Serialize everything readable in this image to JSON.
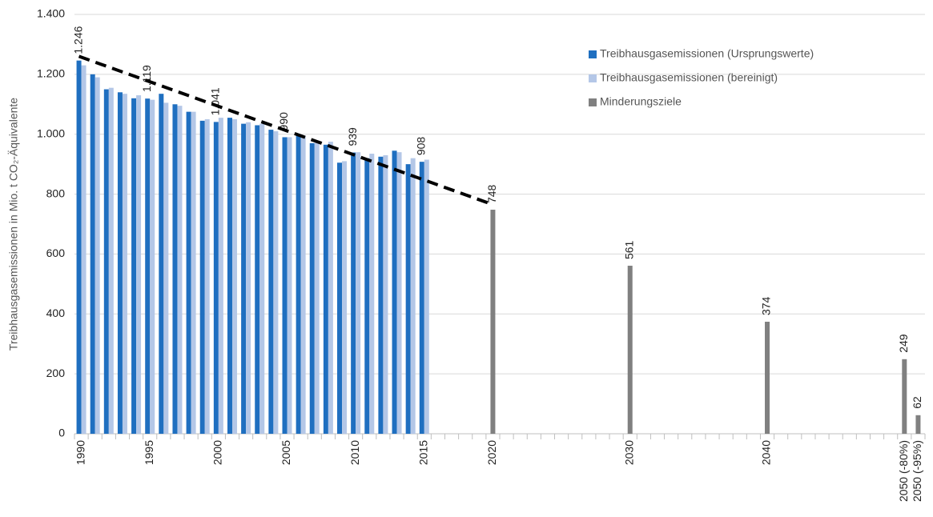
{
  "chart_data": {
    "type": "bar",
    "ylabel": "Treibhausgasemissionen in Mio. t CO₂-Äquivalente",
    "categories": [
      "1990",
      null,
      null,
      null,
      null,
      "1995",
      null,
      null,
      null,
      null,
      "2000",
      null,
      null,
      null,
      null,
      "2005",
      null,
      null,
      null,
      null,
      "2010",
      null,
      null,
      null,
      null,
      "2015",
      null,
      null,
      null,
      null,
      "2020",
      null,
      null,
      null,
      null,
      null,
      null,
      null,
      null,
      null,
      "2030",
      null,
      null,
      null,
      null,
      null,
      null,
      null,
      null,
      null,
      "2040",
      null,
      null,
      null,
      null,
      null,
      null,
      null,
      null,
      null,
      "2050 (-80%)",
      "2050 (-95%)"
    ],
    "series": [
      {
        "name": "Treibhausgasemissionen (Ursprungswerte)",
        "color": "#1f6fc0",
        "values": [
          1246,
          1200,
          1150,
          1140,
          1120,
          1119,
          1135,
          1100,
          1075,
          1045,
          1041,
          1055,
          1035,
          1030,
          1015,
          990,
          1000,
          970,
          965,
          905,
          939,
          920,
          925,
          945,
          900,
          908,
          null,
          null,
          null,
          null,
          null,
          null,
          null,
          null,
          null,
          null,
          null,
          null,
          null,
          null,
          null,
          null,
          null,
          null,
          null,
          null,
          null,
          null,
          null,
          null,
          null,
          null,
          null,
          null,
          null,
          null,
          null,
          null,
          null,
          null,
          null,
          null
        ],
        "value_labels": [
          "1.246",
          null,
          null,
          null,
          null,
          "1.119",
          null,
          null,
          null,
          null,
          "1.041",
          null,
          null,
          null,
          null,
          "990",
          null,
          null,
          null,
          null,
          "939",
          null,
          null,
          null,
          null,
          "908",
          null,
          null,
          null,
          null,
          null,
          null,
          null,
          null,
          null,
          null,
          null,
          null,
          null,
          null,
          null,
          null,
          null,
          null,
          null,
          null,
          null,
          null,
          null,
          null,
          null,
          null,
          null,
          null,
          null,
          null,
          null,
          null,
          null,
          null,
          null,
          null
        ]
      },
      {
        "name": "Treibhausgasemissionen (bereinigt)",
        "color": "#b4c7e7",
        "values": [
          1230,
          1190,
          1155,
          1135,
          1130,
          1115,
          1105,
          1095,
          1075,
          1050,
          1055,
          1050,
          1040,
          1035,
          1010,
          990,
          995,
          975,
          975,
          910,
          940,
          935,
          930,
          940,
          920,
          915,
          null,
          null,
          null,
          null,
          null,
          null,
          null,
          null,
          null,
          null,
          null,
          null,
          null,
          null,
          null,
          null,
          null,
          null,
          null,
          null,
          null,
          null,
          null,
          null,
          null,
          null,
          null,
          null,
          null,
          null,
          null,
          null,
          null,
          null,
          null,
          null
        ]
      },
      {
        "name": "Minderungsziele",
        "color": "#808080",
        "values": [
          null,
          null,
          null,
          null,
          null,
          null,
          null,
          null,
          null,
          null,
          null,
          null,
          null,
          null,
          null,
          null,
          null,
          null,
          null,
          null,
          null,
          null,
          null,
          null,
          null,
          null,
          null,
          null,
          null,
          null,
          748,
          null,
          null,
          null,
          null,
          null,
          null,
          null,
          null,
          null,
          561,
          null,
          null,
          null,
          null,
          null,
          null,
          null,
          null,
          null,
          374,
          null,
          null,
          null,
          null,
          null,
          null,
          null,
          null,
          null,
          249,
          62
        ]
      }
    ],
    "trend": {
      "color": "#000000",
      "start": {
        "category": "1990",
        "value": 1260
      },
      "end": {
        "category": "2020",
        "value": 765
      }
    },
    "ylim": [
      0,
      1400
    ],
    "yticks": [
      0,
      200,
      400,
      600,
      800,
      {
        "value": 1000,
        "label": "1.000"
      },
      {
        "value": 1200,
        "label": "1.200"
      },
      {
        "value": 1400,
        "label": "1.400"
      }
    ],
    "grid": true,
    "legend": "upper right"
  }
}
